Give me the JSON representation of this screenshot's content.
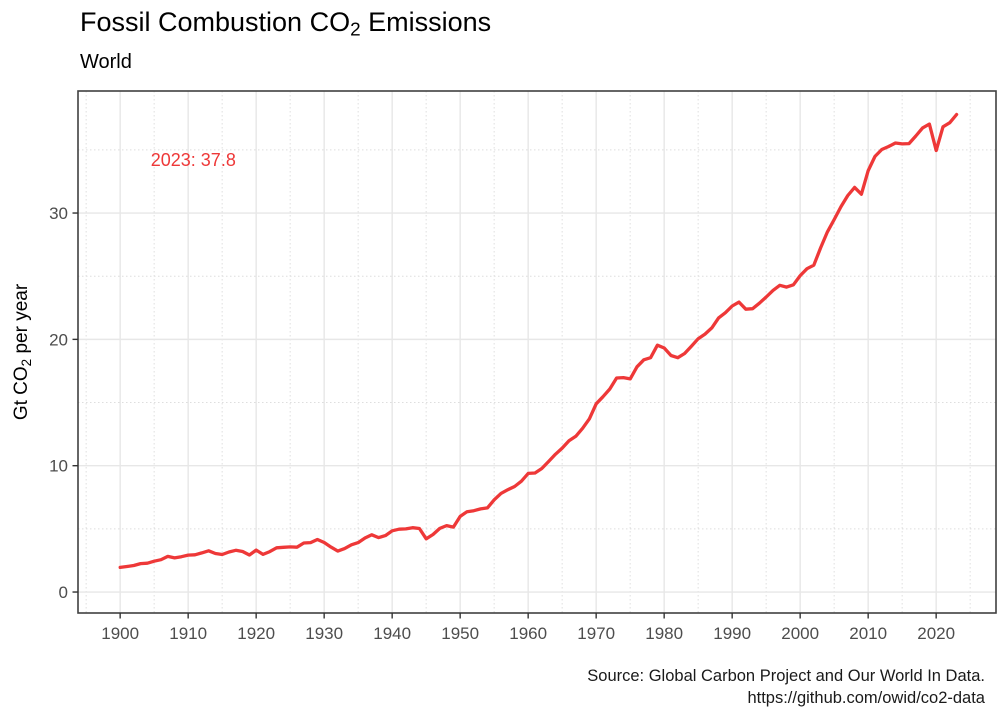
{
  "title": {
    "prefix": "Fossil Combustion CO",
    "sub": "2",
    "suffix": " Emissions"
  },
  "subtitle": "World",
  "annotation": {
    "text": "2023: 37.8",
    "year": 1904.5,
    "value": 34.2
  },
  "y_axis": {
    "label_prefix": "Gt CO",
    "label_sub": "2",
    "label_suffix": " per year",
    "ticks": [
      0,
      10,
      20,
      30
    ],
    "minor_ticks": [
      5,
      15,
      25,
      35
    ]
  },
  "x_axis": {
    "ticks": [
      1900,
      1910,
      1920,
      1930,
      1940,
      1950,
      1960,
      1970,
      1980,
      1990,
      2000,
      2010,
      2020
    ],
    "minor_ticks": [
      1895,
      1905,
      1915,
      1925,
      1935,
      1945,
      1955,
      1965,
      1975,
      1985,
      1995,
      2005,
      2015,
      2025
    ]
  },
  "caption": {
    "line1": "Source: Global Carbon Project and Our World In Data.",
    "line2": "https://github.com/owid/co2-data"
  },
  "colors": {
    "line": "#EE3838",
    "annotation": "#EE3838",
    "grid_major": "#E7E7E7",
    "grid_minor": "#DEDEDE",
    "panel_border": "#404040",
    "tick_mark": "#333333",
    "tick_label": "#4D4D4D",
    "axis_title": "#000000",
    "caption_text": "#1A1A1A"
  },
  "chart_data": {
    "type": "line",
    "title": "Fossil Combustion CO2 Emissions",
    "subtitle": "World",
    "xlabel": "",
    "ylabel": "Gt CO2 per year",
    "x_range": [
      1893.8,
      2028.8
    ],
    "y_range": [
      -1.66,
      39.66
    ],
    "grid": true,
    "legend": "none",
    "series": [
      {
        "name": "World",
        "x_start": 1900,
        "x_step": 1,
        "values": [
          1.95,
          2.02,
          2.1,
          2.25,
          2.28,
          2.44,
          2.56,
          2.82,
          2.7,
          2.8,
          2.92,
          2.95,
          3.1,
          3.26,
          3.05,
          2.97,
          3.17,
          3.3,
          3.21,
          2.93,
          3.32,
          2.98,
          3.2,
          3.5,
          3.54,
          3.57,
          3.55,
          3.88,
          3.91,
          4.16,
          3.92,
          3.56,
          3.24,
          3.44,
          3.74,
          3.91,
          4.28,
          4.53,
          4.31,
          4.47,
          4.85,
          4.97,
          5.0,
          5.09,
          5.03,
          4.21,
          4.55,
          5.04,
          5.26,
          5.14,
          5.99,
          6.36,
          6.44,
          6.58,
          6.66,
          7.3,
          7.81,
          8.1,
          8.35,
          8.77,
          9.39,
          9.42,
          9.78,
          10.33,
          10.9,
          11.39,
          11.97,
          12.33,
          12.96,
          13.71,
          14.9,
          15.46,
          16.07,
          16.94,
          16.97,
          16.87,
          17.83,
          18.38,
          18.55,
          19.54,
          19.32,
          18.72,
          18.55,
          18.88,
          19.46,
          20.05,
          20.42,
          20.91,
          21.7,
          22.11,
          22.64,
          22.95,
          22.39,
          22.43,
          22.86,
          23.35,
          23.88,
          24.28,
          24.14,
          24.32,
          25.05,
          25.59,
          25.87,
          27.24,
          28.51,
          29.49,
          30.51,
          31.39,
          32.03,
          31.49,
          33.36,
          34.48,
          35.03,
          35.27,
          35.54,
          35.47,
          35.5,
          36.1,
          36.74,
          37.04,
          34.95,
          36.83,
          37.15,
          37.8
        ]
      }
    ]
  }
}
